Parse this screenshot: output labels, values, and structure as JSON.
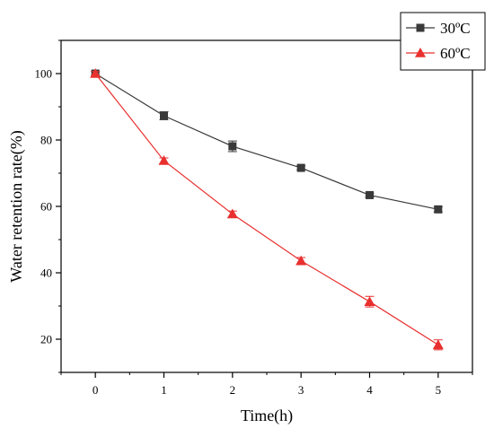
{
  "chart_data": {
    "type": "line",
    "title": "",
    "xlabel": "Time(h)",
    "ylabel": "Water retention rate(%)",
    "x": [
      0,
      1,
      2,
      3,
      4,
      5
    ],
    "x_ticks": [
      "0",
      "1",
      "2",
      "3",
      "4",
      "5"
    ],
    "y_ticks": [
      "20",
      "40",
      "60",
      "80",
      "100"
    ],
    "xlim": [
      -0.5,
      5.5
    ],
    "ylim": [
      10,
      110
    ],
    "grid": false,
    "legend_position": "top-right",
    "series": [
      {
        "name": "30ºC",
        "marker": "square",
        "color": "#3a3a3a",
        "values": [
          100,
          87.3,
          78.1,
          71.6,
          63.4,
          59.1
        ],
        "errors": [
          0.6,
          1.2,
          1.6,
          0.6,
          0.6,
          0.8
        ]
      },
      {
        "name": "60ºC",
        "marker": "triangle",
        "color": "#e8302f",
        "values": [
          100,
          73.8,
          57.7,
          43.6,
          31.3,
          18.3
        ],
        "errors": [
          0.6,
          0.8,
          0.9,
          1.0,
          1.6,
          1.5
        ]
      }
    ]
  }
}
